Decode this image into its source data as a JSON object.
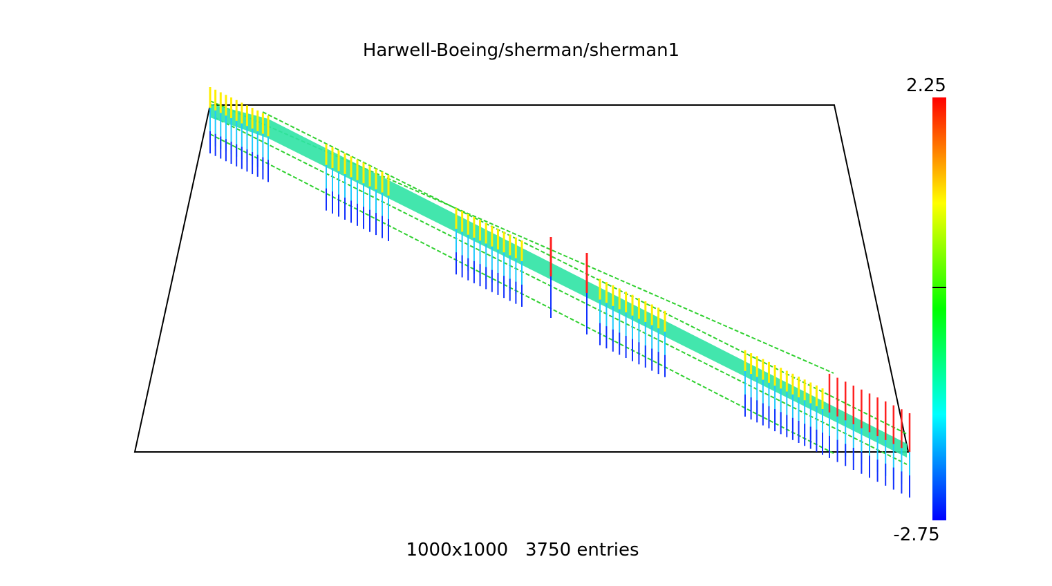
{
  "chart_data": {
    "type": "3d-sparse-matrix-plot",
    "title": "Harwell-Boeing/sherman/sherman1",
    "caption": "1000x1000   3750 entries",
    "rows": 1000,
    "cols": 1000,
    "nnz": 3750,
    "colorbar": {
      "max_label": "2.25",
      "min_label": "-2.75",
      "max": 2.25,
      "min": -2.75,
      "colormap": [
        "#0000ff",
        "#00ffff",
        "#00ff00",
        "#ffff00",
        "#ff0000"
      ]
    },
    "background": "#ffffff"
  }
}
